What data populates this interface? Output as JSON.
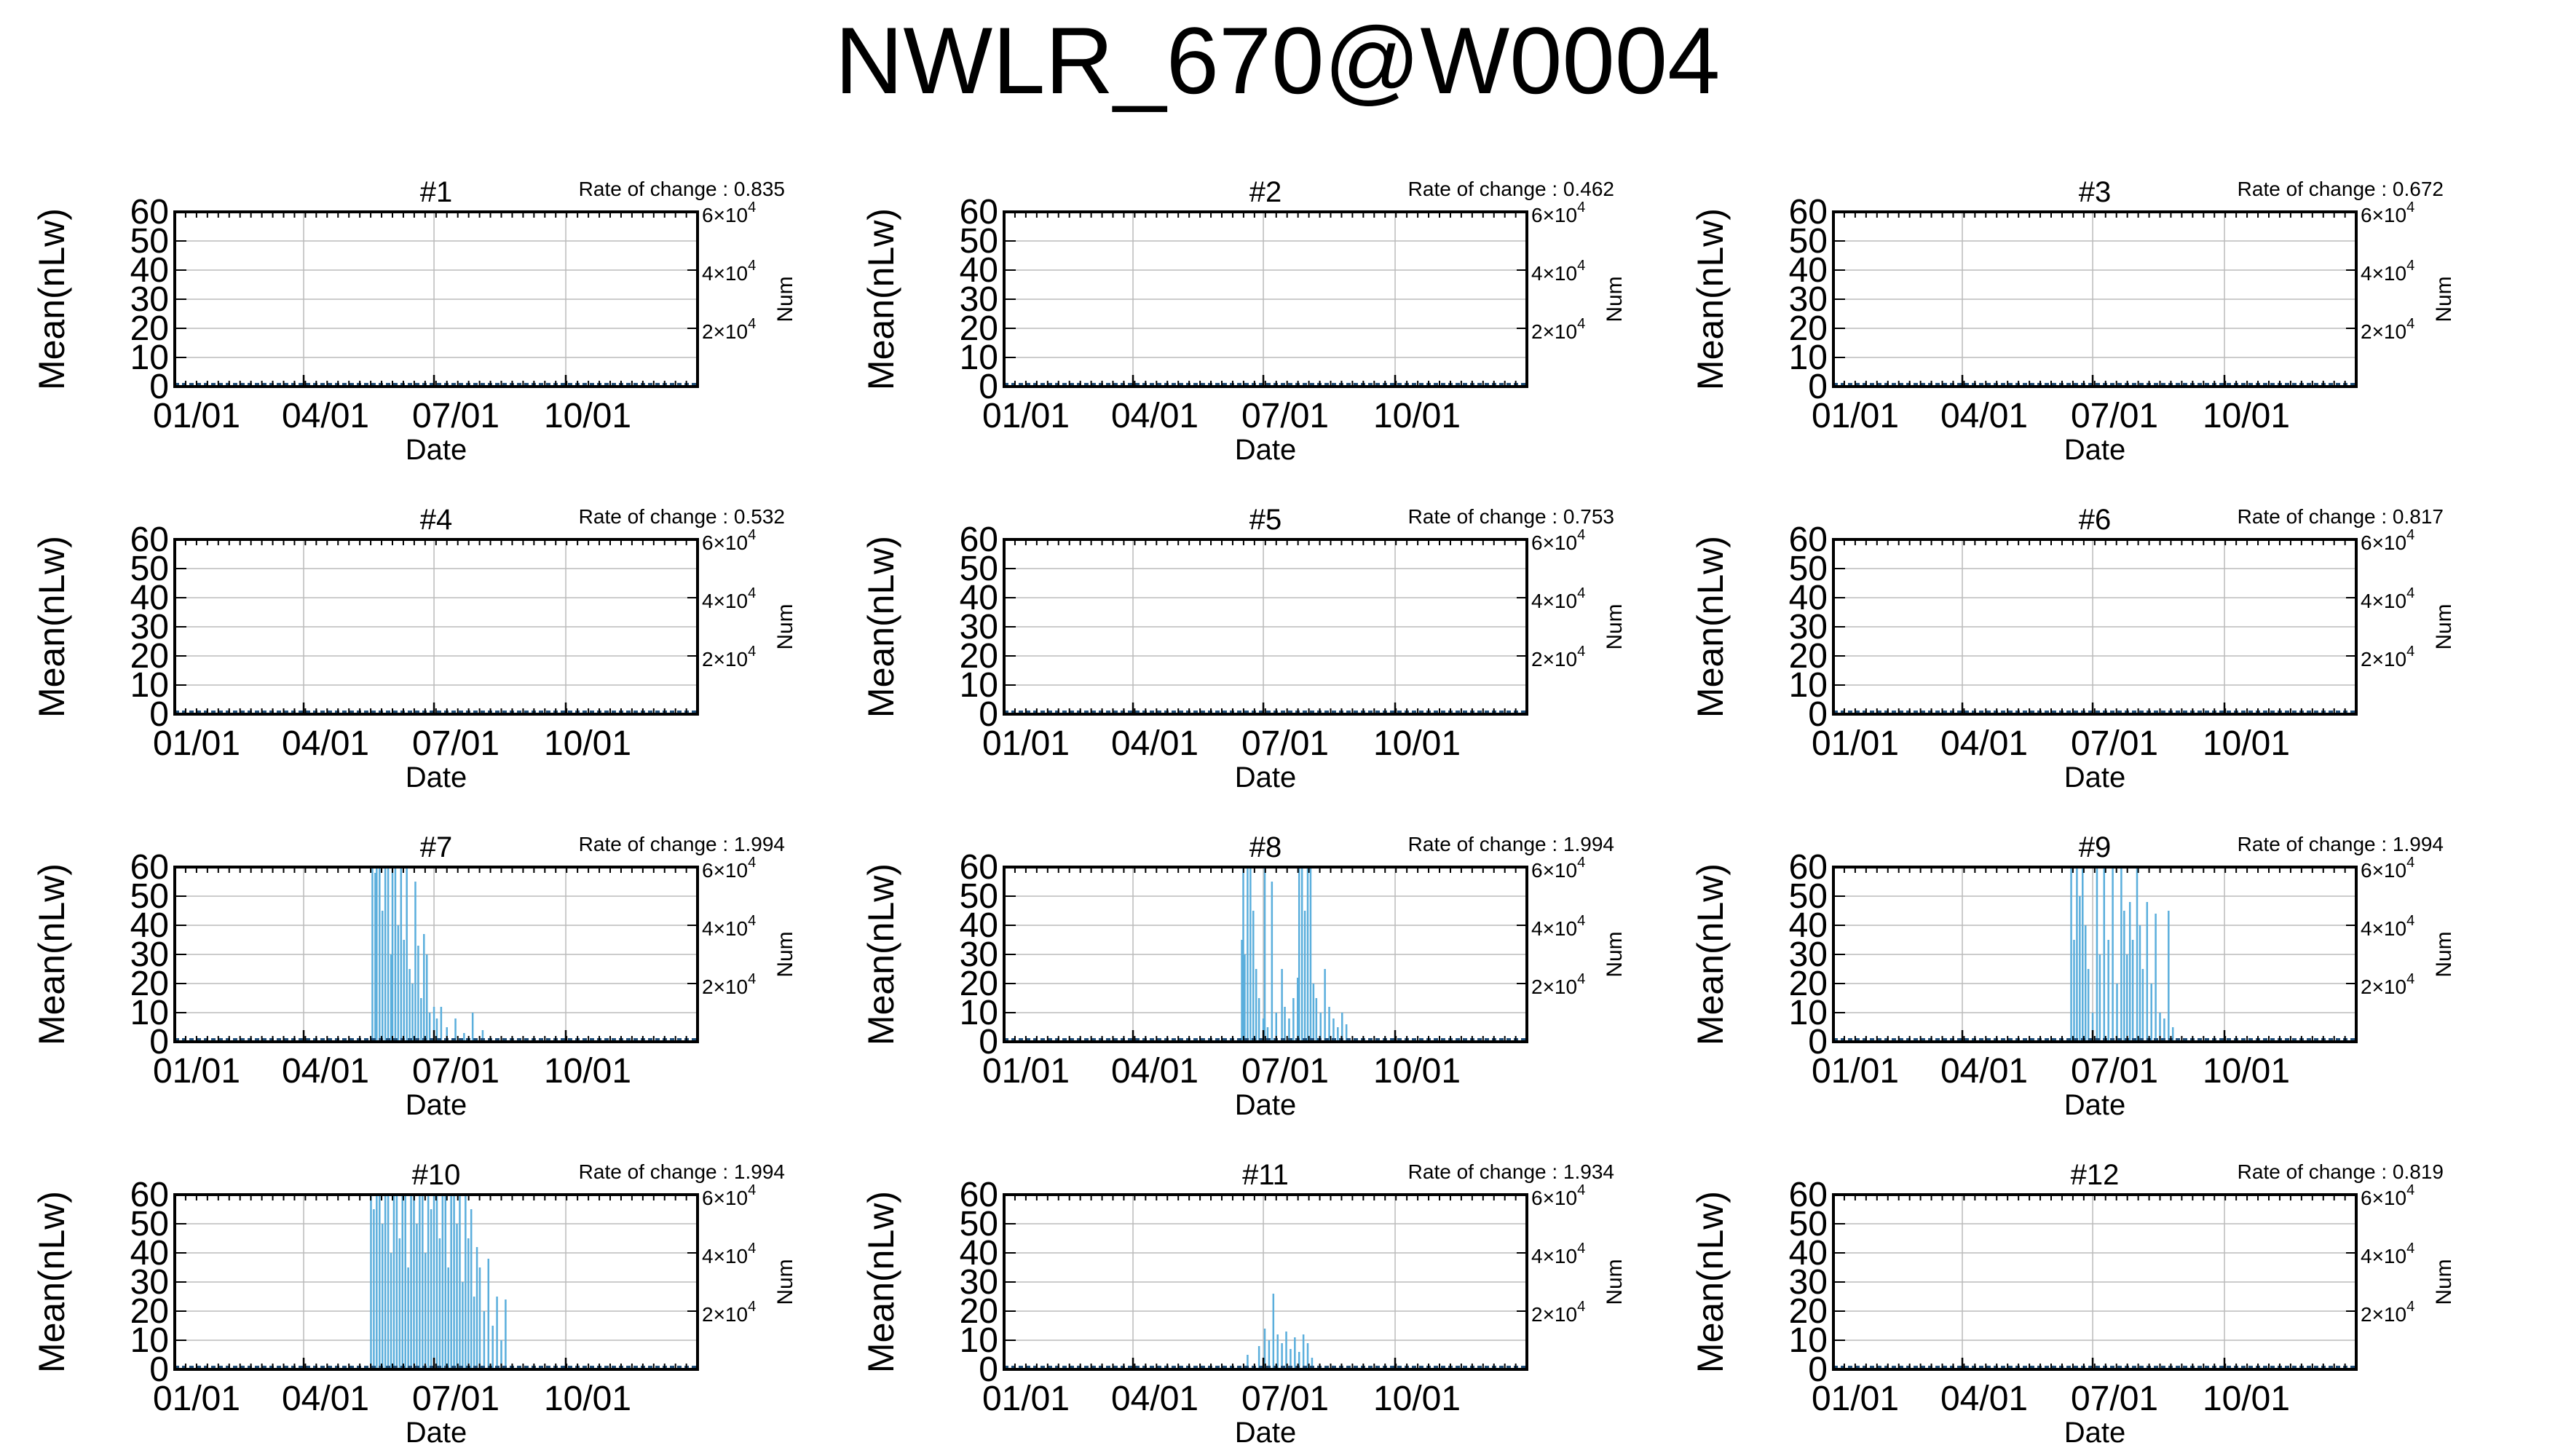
{
  "page_title": "NWLR_670@W0004",
  "shared": {
    "ylabel": "Mean(nLw)",
    "xlabel": "Date",
    "y2label": "Num",
    "yticks": [
      0,
      10,
      20,
      30,
      40,
      50,
      60
    ],
    "ylim": [
      0,
      60
    ],
    "xticks": [
      "01/01",
      "04/01",
      "07/01",
      "10/01"
    ],
    "xlim": [
      "01/01",
      "12/31"
    ],
    "y2ticks": [
      {
        "value": 20000,
        "mantissa": "2",
        "base": "×10",
        "exp": "4"
      },
      {
        "value": 40000,
        "mantissa": "4",
        "base": "×10",
        "exp": "4"
      },
      {
        "value": 60000,
        "mantissa": "6",
        "base": "×10",
        "exp": "4"
      }
    ],
    "y2lim": [
      0,
      60000
    ],
    "rate_prefix": "Rate of change : ",
    "grid": true,
    "line_color": "#5aaedc",
    "num_color": "#1f4e79"
  },
  "chart_data": [
    {
      "type": "line",
      "title": "#1",
      "rate_of_change": "0.835",
      "spikes": []
    },
    {
      "type": "line",
      "title": "#2",
      "rate_of_change": "0.462",
      "spikes": []
    },
    {
      "type": "line",
      "title": "#3",
      "rate_of_change": "0.672",
      "spikes": []
    },
    {
      "type": "line",
      "title": "#4",
      "rate_of_change": "0.532",
      "spikes": []
    },
    {
      "type": "line",
      "title": "#5",
      "rate_of_change": "0.753",
      "spikes": []
    },
    {
      "type": "line",
      "title": "#6",
      "rate_of_change": "0.817",
      "spikes": []
    },
    {
      "type": "line",
      "title": "#7",
      "rate_of_change": "1.994",
      "spikes": [
        [
          "05/19",
          60
        ],
        [
          "05/21",
          58
        ],
        [
          "05/22",
          60
        ],
        [
          "05/24",
          60
        ],
        [
          "05/26",
          45
        ],
        [
          "05/28",
          60
        ],
        [
          "05/30",
          60
        ],
        [
          "06/01",
          30
        ],
        [
          "06/02",
          60
        ],
        [
          "06/04",
          60
        ],
        [
          "06/06",
          40
        ],
        [
          "06/08",
          60
        ],
        [
          "06/10",
          35
        ],
        [
          "06/12",
          60
        ],
        [
          "06/14",
          25
        ],
        [
          "06/16",
          20
        ],
        [
          "06/18",
          55
        ],
        [
          "06/20",
          33
        ],
        [
          "06/22",
          15
        ],
        [
          "06/24",
          37
        ],
        [
          "06/26",
          30
        ],
        [
          "06/28",
          10
        ],
        [
          "07/01",
          12
        ],
        [
          "07/03",
          8
        ],
        [
          "07/06",
          12
        ],
        [
          "07/10",
          5
        ],
        [
          "07/16",
          8
        ],
        [
          "07/22",
          3
        ],
        [
          "07/28",
          10
        ],
        [
          "08/04",
          4
        ]
      ]
    },
    {
      "type": "line",
      "title": "#8",
      "rate_of_change": "1.994",
      "spikes": [
        [
          "06/16",
          35
        ],
        [
          "06/17",
          60
        ],
        [
          "06/18",
          30
        ],
        [
          "06/20",
          60
        ],
        [
          "06/22",
          60
        ],
        [
          "06/24",
          45
        ],
        [
          "06/26",
          25
        ],
        [
          "06/28",
          15
        ],
        [
          "07/01",
          8
        ],
        [
          "07/02",
          60
        ],
        [
          "07/04",
          5
        ],
        [
          "07/07",
          55
        ],
        [
          "07/10",
          10
        ],
        [
          "07/14",
          25
        ],
        [
          "07/16",
          12
        ],
        [
          "07/19",
          8
        ],
        [
          "07/22",
          15
        ],
        [
          "07/25",
          22
        ],
        [
          "07/26",
          60
        ],
        [
          "07/28",
          60
        ],
        [
          "07/30",
          45
        ],
        [
          "08/01",
          60
        ],
        [
          "08/03",
          60
        ],
        [
          "08/05",
          20
        ],
        [
          "08/07",
          15
        ],
        [
          "08/10",
          10
        ],
        [
          "08/13",
          25
        ],
        [
          "08/16",
          12
        ],
        [
          "08/19",
          8
        ],
        [
          "08/22",
          5
        ],
        [
          "08/25",
          10
        ],
        [
          "08/28",
          6
        ]
      ]
    },
    {
      "type": "line",
      "title": "#9",
      "rate_of_change": "1.994",
      "spikes": [
        [
          "06/16",
          60
        ],
        [
          "06/18",
          35
        ],
        [
          "06/20",
          60
        ],
        [
          "06/22",
          50
        ],
        [
          "06/24",
          60
        ],
        [
          "06/26",
          40
        ],
        [
          "06/28",
          25
        ],
        [
          "07/01",
          10
        ],
        [
          "07/04",
          60
        ],
        [
          "07/06",
          30
        ],
        [
          "07/09",
          60
        ],
        [
          "07/12",
          35
        ],
        [
          "07/15",
          60
        ],
        [
          "07/18",
          20
        ],
        [
          "07/21",
          60
        ],
        [
          "07/23",
          45
        ],
        [
          "07/25",
          30
        ],
        [
          "07/27",
          48
        ],
        [
          "07/29",
          35
        ],
        [
          "08/01",
          60
        ],
        [
          "08/03",
          40
        ],
        [
          "08/05",
          25
        ],
        [
          "08/08",
          48
        ],
        [
          "08/11",
          20
        ],
        [
          "08/14",
          44
        ],
        [
          "08/17",
          10
        ],
        [
          "08/20",
          8
        ],
        [
          "08/23",
          45
        ],
        [
          "08/26",
          5
        ]
      ]
    },
    {
      "type": "line",
      "title": "#10",
      "rate_of_change": "1.994",
      "spikes": [
        [
          "05/18",
          60
        ],
        [
          "05/20",
          55
        ],
        [
          "05/22",
          60
        ],
        [
          "05/24",
          60
        ],
        [
          "05/26",
          50
        ],
        [
          "05/28",
          60
        ],
        [
          "05/30",
          60
        ],
        [
          "06/01",
          40
        ],
        [
          "06/03",
          60
        ],
        [
          "06/05",
          60
        ],
        [
          "06/07",
          45
        ],
        [
          "06/09",
          60
        ],
        [
          "06/11",
          60
        ],
        [
          "06/13",
          35
        ],
        [
          "06/15",
          60
        ],
        [
          "06/17",
          60
        ],
        [
          "06/19",
          50
        ],
        [
          "06/21",
          60
        ],
        [
          "06/23",
          60
        ],
        [
          "06/25",
          40
        ],
        [
          "06/27",
          60
        ],
        [
          "06/29",
          55
        ],
        [
          "07/01",
          60
        ],
        [
          "07/03",
          60
        ],
        [
          "07/05",
          45
        ],
        [
          "07/07",
          60
        ],
        [
          "07/09",
          60
        ],
        [
          "07/11",
          35
        ],
        [
          "07/13",
          60
        ],
        [
          "07/15",
          60
        ],
        [
          "07/17",
          50
        ],
        [
          "07/19",
          60
        ],
        [
          "07/21",
          30
        ],
        [
          "07/23",
          60
        ],
        [
          "07/25",
          45
        ],
        [
          "07/27",
          55
        ],
        [
          "07/29",
          25
        ],
        [
          "07/31",
          42
        ],
        [
          "08/02",
          35
        ],
        [
          "08/05",
          20
        ],
        [
          "08/08",
          38
        ],
        [
          "08/11",
          15
        ],
        [
          "08/14",
          25
        ],
        [
          "08/17",
          10
        ],
        [
          "08/20",
          24
        ]
      ]
    },
    {
      "type": "line",
      "title": "#11",
      "rate_of_change": "1.934",
      "spikes": [
        [
          "06/20",
          5
        ],
        [
          "06/28",
          8
        ],
        [
          "07/02",
          14
        ],
        [
          "07/05",
          10
        ],
        [
          "07/08",
          26
        ],
        [
          "07/11",
          12
        ],
        [
          "07/14",
          9
        ],
        [
          "07/17",
          13
        ],
        [
          "07/20",
          7
        ],
        [
          "07/23",
          11
        ],
        [
          "07/26",
          6
        ],
        [
          "07/29",
          12
        ],
        [
          "08/01",
          9
        ],
        [
          "08/04",
          4
        ]
      ]
    },
    {
      "type": "line",
      "title": "#12",
      "rate_of_change": "0.819",
      "spikes": []
    }
  ]
}
